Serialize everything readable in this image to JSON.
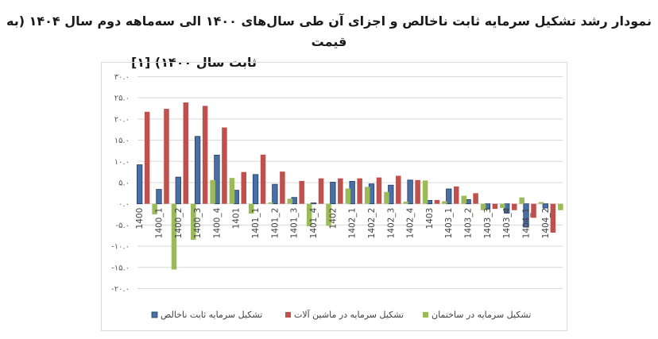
{
  "title": {
    "line1": "نمودار رشد تشکیل سرمایه ثابت ناخالص و اجزای آن طی سال‌های ۱۴۰۰ الی سه‌ماهه دوم سال ۱۴۰۴ (به قیمت",
    "line2": "ثابت سال ۱۴۰۰) [۱]"
  },
  "chart_data": {
    "type": "bar",
    "categories": [
      "1400",
      "1400_1",
      "1400_2",
      "1400_3",
      "1400_4",
      "1401",
      "1401_1",
      "1401_2",
      "1401_3",
      "1401_4",
      "1402",
      "1402_1",
      "1402_2",
      "1402_3",
      "1402_4",
      "1403",
      "1403_1",
      "1403_2",
      "1403_3",
      "1403_4",
      "1404_1",
      "1404_2"
    ],
    "y_tick_labels": [
      "۳۰.۰",
      "۲۵.۰",
      "۲۰.۰",
      "۱۵.۰",
      "۱۰.۰",
      "۵.۰",
      "۰.۰",
      "-۵.۰",
      "-۱۰.۰",
      "-۱۵.۰",
      "-۲۰.۰"
    ],
    "ylim": [
      -20,
      30
    ],
    "grid": true,
    "legend_position": "bottom",
    "series": [
      {
        "name": "تشکیل سرمایه ثابت ناخالص",
        "color": "#4a6fa5",
        "values": [
          9.2,
          3.4,
          6.3,
          15.9,
          11.5,
          3.2,
          6.9,
          4.6,
          1.5,
          0.2,
          5.1,
          5.3,
          4.7,
          4.4,
          5.6,
          0.8,
          3.5,
          1.0,
          -1.2,
          -2.2,
          -5.5,
          -1
        ]
      },
      {
        "name": "تشکیل سرمایه در ماشین آلات",
        "color": "#c0504d",
        "values": [
          21.7,
          22.4,
          23.9,
          23.1,
          18.0,
          7.5,
          11.6,
          7.6,
          5.4,
          6.0,
          6.0,
          6.0,
          6.2,
          6.6,
          5.6,
          0.9,
          4.1,
          2.5,
          -1.2,
          -1.5,
          -3.3,
          -6.8
        ]
      },
      {
        "name": "تشکیل سرمایه در ساختمان",
        "color": "#9bbb59",
        "values": [
          -2.5,
          -15.5,
          -8.5,
          5.6,
          6.1,
          -2.3,
          0.3,
          1.2,
          -5.3,
          -5.2,
          3.6,
          4.0,
          2.8,
          0.5,
          5.5,
          0.6,
          1.9,
          -1.5,
          -1.0,
          1.5,
          0.4,
          -1.5
        ]
      }
    ]
  }
}
